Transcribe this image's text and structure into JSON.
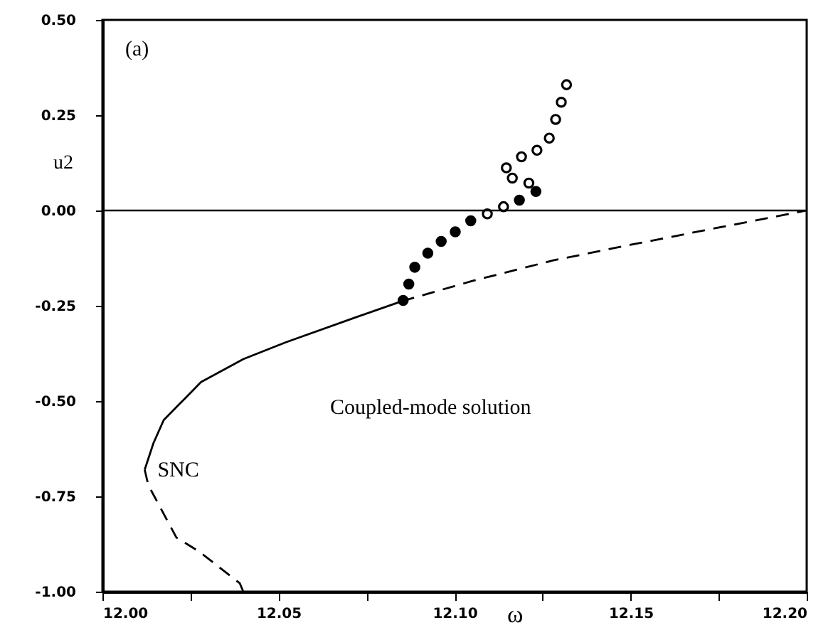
{
  "chart_data": {
    "type": "line",
    "xlabel": "ω",
    "ylabel": "u2",
    "annotations": [
      "(a)",
      "Coupled-mode solution",
      {
        "text": "SNC",
        "x": 12.012,
        "y": -0.68
      }
    ],
    "xlim": [
      12.0,
      12.2
    ],
    "ylim": [
      -1.0,
      0.5
    ],
    "xticks": [
      {
        "value": 12.0,
        "label": "12.00"
      },
      {
        "value": 12.025,
        "label": null
      },
      {
        "value": 12.05,
        "label": "12.05"
      },
      {
        "value": 12.075,
        "label": null
      },
      {
        "value": 12.1,
        "label": "12.10"
      },
      {
        "value": 12.125,
        "label": null
      },
      {
        "value": 12.15,
        "label": "12.15"
      },
      {
        "value": 12.175,
        "label": null
      },
      {
        "value": 12.2,
        "label": "12.20"
      }
    ],
    "yticks": [
      {
        "value": -1.0,
        "label": "-1.00"
      },
      {
        "value": -0.75,
        "label": "-0.75"
      },
      {
        "value": -0.5,
        "label": "-0.50"
      },
      {
        "value": -0.25,
        "label": "-0.25"
      },
      {
        "value": 0.0,
        "label": "0.00"
      },
      {
        "value": 0.25,
        "label": "0.25"
      },
      {
        "value": 0.5,
        "label": "0.50"
      }
    ],
    "grid": false,
    "ref_lines": [
      {
        "axis": "y",
        "value": 0.0,
        "color": "#000000",
        "line_style": "solid"
      }
    ],
    "series": [
      {
        "color": "#000000",
        "line_style": "solid",
        "x": [
          12.012,
          12.0145,
          12.0174,
          12.028,
          12.04,
          12.052,
          12.072,
          12.085
        ],
        "values": [
          -0.68,
          -0.61,
          -0.55,
          -0.45,
          -0.39,
          -0.346,
          -0.28,
          -0.238
        ]
      },
      {
        "color": "#000000",
        "line_style": "dashed",
        "x": [
          12.085,
          12.105,
          12.128,
          12.15,
          12.171,
          12.2
        ],
        "values": [
          -0.238,
          -0.185,
          -0.131,
          -0.09,
          -0.052,
          0.0
        ]
      },
      {
        "color": "#000000",
        "line_style": "dashed",
        "x": [
          12.012,
          12.013,
          12.021,
          12.0275,
          12.039,
          12.04
        ],
        "values": [
          -0.68,
          -0.72,
          -0.858,
          -0.895,
          -0.978,
          -1.0
        ]
      },
      {
        "type": "scatter",
        "color": "#000000",
        "marker": "circle",
        "x": [
          12.0854,
          12.087,
          12.0887,
          12.0924,
          12.0962,
          12.1002,
          12.1046,
          12.1184,
          12.1231
        ],
        "values": [
          -0.236,
          -0.193,
          -0.149,
          -0.112,
          -0.081,
          -0.056,
          -0.027,
          0.027,
          0.05
        ]
      },
      {
        "type": "scatter",
        "color": "#000000",
        "marker": "circle",
        "x": [
          12.1093,
          12.1139,
          12.1164,
          12.1211,
          12.1147,
          12.119,
          12.1234,
          12.1269,
          12.1287,
          12.1303,
          12.1318
        ],
        "values": [
          -0.009,
          0.01,
          0.085,
          0.072,
          0.112,
          0.141,
          0.158,
          0.19,
          0.239,
          0.284,
          0.33
        ]
      }
    ]
  }
}
